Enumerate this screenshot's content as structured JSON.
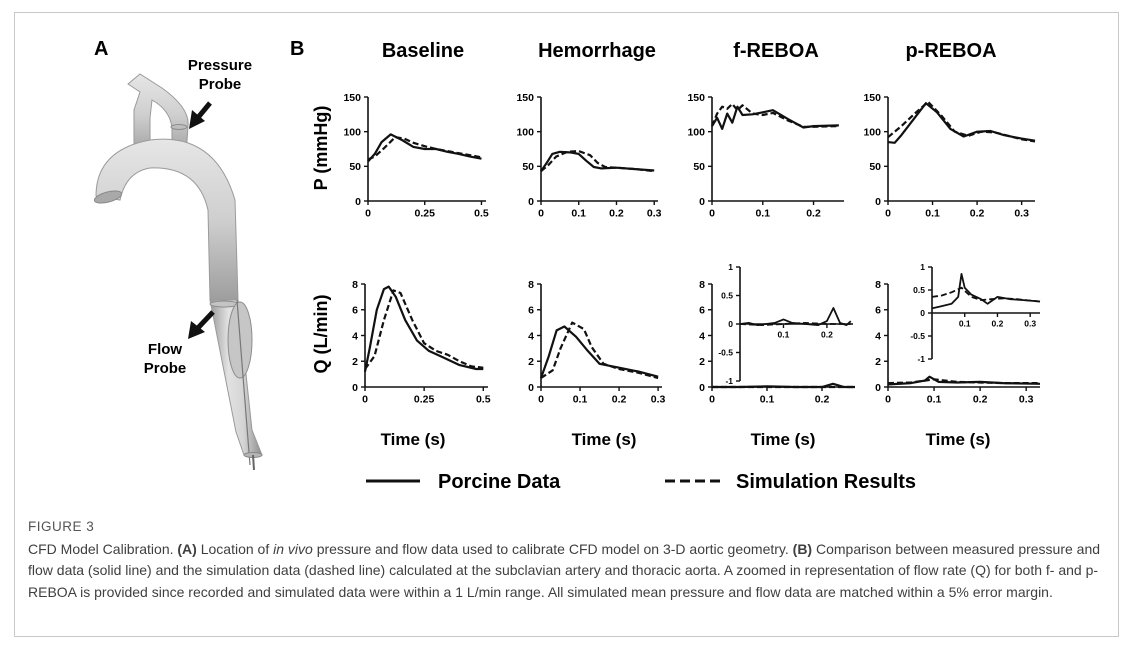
{
  "panel_a": {
    "label": "A",
    "pressure_probe_label": [
      "Pressure",
      "Probe"
    ],
    "flow_probe_label": [
      "Flow",
      "Probe"
    ]
  },
  "panel_b": {
    "label": "B",
    "column_titles": [
      "Baseline",
      "Hemorrhage",
      "f-REBOA",
      "p-REBOA"
    ],
    "row_labels": [
      "P (mmHg)",
      "Q (L/min)"
    ],
    "xlabel": "Time (s)",
    "legend": {
      "solid": "Porcine Data",
      "dashed": "Simulation Results"
    }
  },
  "caption": {
    "figure_label": "FIGURE 3",
    "title": "CFD Model Calibration.",
    "part_a_tag": "(A)",
    "part_a_text_1": "Location of",
    "part_a_italic": "in vivo",
    "part_a_text_2": "pressure and flow data used to calibrate CFD model on 3-D aortic geometry.",
    "part_b_tag": "(B)",
    "part_b_text": "Comparison between measured pressure and flow data (solid line) and the simulation data (dashed line) calculated at the subclavian artery and thoracic aorta. A zoomed in representation of flow rate (Q) for both f- and p-REBOA is provided since recorded and simulated data were within a 1 L/min range. All simulated mean pressure and flow data are matched within a 5% error margin."
  },
  "chart_data": [
    {
      "type": "line",
      "id": "p-baseline",
      "ylabel": "P (mmHg)",
      "xlabel": "Time (s)",
      "xlim": [
        0,
        0.52
      ],
      "ylim": [
        0,
        150
      ],
      "xticks": [
        0,
        0.25,
        0.5
      ],
      "xtick_labels": [
        "0",
        "0.25",
        "0.5"
      ],
      "yticks": [
        0,
        50,
        100,
        150
      ],
      "ytick_labels": [
        "0",
        "50",
        "100",
        "150"
      ],
      "series": [
        {
          "style": "solid",
          "x": [
            0,
            0.03,
            0.06,
            0.1,
            0.15,
            0.2,
            0.25,
            0.3,
            0.35,
            0.4,
            0.45,
            0.5
          ],
          "y": [
            57,
            68,
            85,
            96,
            88,
            78,
            75,
            75,
            71,
            68,
            64,
            61
          ]
        },
        {
          "style": "dashed",
          "x": [
            0,
            0.03,
            0.07,
            0.12,
            0.16,
            0.2,
            0.25,
            0.3,
            0.35,
            0.4,
            0.45,
            0.5
          ],
          "y": [
            60,
            64,
            76,
            92,
            90,
            84,
            79,
            75,
            72,
            69,
            66,
            63
          ]
        }
      ]
    },
    {
      "type": "line",
      "id": "p-hemorrhage",
      "ylabel": "P (mmHg)",
      "xlabel": "Time (s)",
      "xlim": [
        0,
        0.31
      ],
      "ylim": [
        0,
        150
      ],
      "xticks": [
        0,
        0.1,
        0.2,
        0.3
      ],
      "xtick_labels": [
        "0",
        "0.1",
        "0.2",
        "0.3"
      ],
      "yticks": [
        0,
        50,
        100,
        150
      ],
      "ytick_labels": [
        "0",
        "50",
        "100",
        "150"
      ],
      "series": [
        {
          "style": "solid",
          "x": [
            0,
            0.015,
            0.03,
            0.05,
            0.08,
            0.1,
            0.12,
            0.14,
            0.16,
            0.2,
            0.25,
            0.3
          ],
          "y": [
            43,
            55,
            68,
            71,
            70,
            68,
            58,
            49,
            47,
            48,
            46,
            44
          ]
        },
        {
          "style": "dashed",
          "x": [
            0,
            0.02,
            0.04,
            0.07,
            0.1,
            0.13,
            0.15,
            0.17,
            0.2,
            0.25,
            0.3
          ],
          "y": [
            43,
            52,
            64,
            71,
            72,
            66,
            55,
            49,
            48,
            46,
            43
          ]
        }
      ]
    },
    {
      "type": "line",
      "id": "p-freboa",
      "ylabel": "P (mmHg)",
      "xlabel": "Time (s)",
      "xlim": [
        0,
        0.26
      ],
      "ylim": [
        0,
        150
      ],
      "xticks": [
        0,
        0.1,
        0.2
      ],
      "xtick_labels": [
        "0",
        "0.1",
        "0.2"
      ],
      "yticks": [
        0,
        50,
        100,
        150
      ],
      "ytick_labels": [
        "0",
        "50",
        "100",
        "150"
      ],
      "series": [
        {
          "style": "solid",
          "x": [
            0,
            0.01,
            0.02,
            0.03,
            0.04,
            0.05,
            0.06,
            0.08,
            0.1,
            0.12,
            0.15,
            0.18,
            0.2,
            0.25
          ],
          "y": [
            108,
            120,
            104,
            126,
            113,
            136,
            124,
            125,
            128,
            131,
            118,
            106,
            108,
            109
          ]
        },
        {
          "style": "dashed",
          "x": [
            0,
            0.01,
            0.02,
            0.03,
            0.04,
            0.05,
            0.06,
            0.08,
            0.1,
            0.12,
            0.15,
            0.18,
            0.2,
            0.25
          ],
          "y": [
            108,
            126,
            136,
            133,
            140,
            131,
            138,
            126,
            124,
            127,
            116,
            107,
            107,
            108
          ]
        }
      ]
    },
    {
      "type": "line",
      "id": "p-preboa",
      "ylabel": "P (mmHg)",
      "xlabel": "Time (s)",
      "xlim": [
        0,
        0.33
      ],
      "ylim": [
        0,
        150
      ],
      "xticks": [
        0,
        0.1,
        0.2,
        0.3
      ],
      "xtick_labels": [
        "0",
        "0.1",
        "0.2",
        "0.3"
      ],
      "yticks": [
        0,
        50,
        100,
        150
      ],
      "ytick_labels": [
        "0",
        "50",
        "100",
        "150"
      ],
      "series": [
        {
          "style": "solid",
          "x": [
            0,
            0.015,
            0.03,
            0.06,
            0.085,
            0.11,
            0.14,
            0.17,
            0.2,
            0.23,
            0.26,
            0.3,
            0.33
          ],
          "y": [
            85,
            84,
            95,
            120,
            141,
            128,
            104,
            93,
            100,
            101,
            95,
            90,
            87
          ]
        },
        {
          "style": "dashed",
          "x": [
            0,
            0.015,
            0.03,
            0.06,
            0.09,
            0.12,
            0.15,
            0.18,
            0.21,
            0.24,
            0.27,
            0.3,
            0.33
          ],
          "y": [
            92,
            100,
            108,
            126,
            143,
            123,
            100,
            94,
            100,
            99,
            94,
            89,
            86
          ]
        }
      ]
    },
    {
      "type": "line",
      "id": "q-baseline",
      "ylabel": "Q (L/min)",
      "xlabel": "Time (s)",
      "xlim": [
        0,
        0.52
      ],
      "ylim": [
        0,
        8
      ],
      "xticks": [
        0,
        0.25,
        0.5
      ],
      "xtick_labels": [
        "0",
        "0.25",
        "0.5"
      ],
      "yticks": [
        0,
        2,
        4,
        6,
        8
      ],
      "ytick_labels": [
        "0",
        "2",
        "4",
        "6",
        "8"
      ],
      "series": [
        {
          "style": "solid",
          "x": [
            0,
            0.02,
            0.05,
            0.08,
            0.1,
            0.13,
            0.17,
            0.22,
            0.27,
            0.33,
            0.4,
            0.47,
            0.5
          ],
          "y": [
            1.2,
            3.0,
            6.0,
            7.6,
            7.8,
            7.0,
            5.2,
            3.6,
            2.8,
            2.3,
            1.7,
            1.4,
            1.4
          ]
        },
        {
          "style": "dashed",
          "x": [
            0,
            0.04,
            0.08,
            0.12,
            0.15,
            0.2,
            0.25,
            0.3,
            0.35,
            0.4,
            0.45,
            0.5
          ],
          "y": [
            1.4,
            2.4,
            5.2,
            7.5,
            7.3,
            5.2,
            3.4,
            2.8,
            2.5,
            2.0,
            1.6,
            1.5
          ]
        }
      ]
    },
    {
      "type": "line",
      "id": "q-hemorrhage",
      "ylabel": "Q (L/min)",
      "xlabel": "Time (s)",
      "xlim": [
        0,
        0.31
      ],
      "ylim": [
        0,
        8
      ],
      "xticks": [
        0,
        0.1,
        0.2,
        0.3
      ],
      "xtick_labels": [
        "0",
        "0.1",
        "0.2",
        "0.3"
      ],
      "yticks": [
        0,
        2,
        4,
        6,
        8
      ],
      "ytick_labels": [
        "0",
        "2",
        "4",
        "6",
        "8"
      ],
      "series": [
        {
          "style": "solid",
          "x": [
            0,
            0.02,
            0.04,
            0.06,
            0.09,
            0.12,
            0.15,
            0.2,
            0.25,
            0.3
          ],
          "y": [
            0.7,
            2.4,
            4.4,
            4.7,
            3.9,
            2.8,
            1.8,
            1.5,
            1.2,
            0.8
          ]
        },
        {
          "style": "dashed",
          "x": [
            0,
            0.03,
            0.05,
            0.08,
            0.11,
            0.13,
            0.16,
            0.2,
            0.25,
            0.3
          ],
          "y": [
            0.7,
            1.3,
            3.0,
            5.0,
            4.5,
            3.1,
            1.8,
            1.4,
            1.1,
            0.7
          ]
        }
      ]
    },
    {
      "type": "line",
      "id": "q-freboa",
      "ylabel": "Q (L/min)",
      "xlabel": "Time (s)",
      "xlim": [
        0,
        0.26
      ],
      "ylim": [
        0,
        8
      ],
      "xticks": [
        0,
        0.1,
        0.2
      ],
      "xtick_labels": [
        "0",
        "0.1",
        "0.2"
      ],
      "yticks": [
        0,
        2,
        4,
        6,
        8
      ],
      "ytick_labels": [
        "0",
        "2",
        "4",
        "6",
        "8"
      ],
      "series": [
        {
          "style": "solid",
          "x": [
            0,
            0.05,
            0.1,
            0.15,
            0.2,
            0.22,
            0.24,
            0.26
          ],
          "y": [
            0,
            0,
            0.05,
            0,
            0,
            0.25,
            0,
            0
          ]
        },
        {
          "style": "dashed",
          "x": [
            0,
            0.1,
            0.2,
            0.26
          ],
          "y": [
            0,
            0,
            0,
            0
          ]
        }
      ],
      "inset": {
        "xlim": [
          0,
          0.26
        ],
        "ylim": [
          -1,
          1
        ],
        "xticks": [
          0.1,
          0.2
        ],
        "xtick_labels": [
          "0.1",
          "0.2"
        ],
        "yticks": [
          -1,
          -0.5,
          0,
          0.5,
          1
        ],
        "ytick_labels": [
          "-1",
          "-0.5",
          "0",
          "0.5",
          "1"
        ],
        "series": [
          {
            "style": "solid",
            "x": [
              0,
              0.02,
              0.04,
              0.06,
              0.08,
              0.1,
              0.12,
              0.15,
              0.18,
              0.2,
              0.215,
              0.23,
              0.245,
              0.255
            ],
            "y": [
              0,
              0.02,
              -0.02,
              0,
              0.02,
              0.08,
              0.02,
              0,
              -0.02,
              0.05,
              0.28,
              0.02,
              -0.02,
              0.05
            ]
          },
          {
            "style": "dashed",
            "x": [
              0,
              0.05,
              0.1,
              0.15,
              0.2,
              0.255
            ],
            "y": [
              0,
              -0.02,
              0,
              0.02,
              0,
              0
            ]
          }
        ]
      }
    },
    {
      "type": "line",
      "id": "q-preboa",
      "ylabel": "Q (L/min)",
      "xlabel": "Time (s)",
      "xlim": [
        0,
        0.33
      ],
      "ylim": [
        0,
        8
      ],
      "xticks": [
        0,
        0.1,
        0.2,
        0.3
      ],
      "xtick_labels": [
        "0",
        "0.1",
        "0.2",
        "0.3"
      ],
      "yticks": [
        0,
        2,
        4,
        6,
        8
      ],
      "ytick_labels": [
        "0",
        "2",
        "4",
        "6",
        "8"
      ],
      "series": [
        {
          "style": "solid",
          "x": [
            0,
            0.05,
            0.08,
            0.09,
            0.11,
            0.15,
            0.2,
            0.25,
            0.33
          ],
          "y": [
            0.2,
            0.3,
            0.5,
            0.8,
            0.4,
            0.35,
            0.4,
            0.3,
            0.25
          ]
        },
        {
          "style": "dashed",
          "x": [
            0,
            0.05,
            0.08,
            0.1,
            0.15,
            0.2,
            0.25,
            0.33
          ],
          "y": [
            0.3,
            0.35,
            0.5,
            0.6,
            0.4,
            0.35,
            0.3,
            0.3
          ]
        }
      ],
      "inset": {
        "xlim": [
          0,
          0.33
        ],
        "ylim": [
          -1,
          1
        ],
        "xticks": [
          0.1,
          0.2,
          0.3
        ],
        "xtick_labels": [
          "0.1",
          "0.2",
          "0.3"
        ],
        "yticks": [
          -1,
          -0.5,
          0,
          0.5,
          1
        ],
        "ytick_labels": [
          "-1",
          "-0.5",
          "0",
          "0.5",
          "1"
        ],
        "series": [
          {
            "style": "solid",
            "x": [
              0,
              0.03,
              0.06,
              0.08,
              0.09,
              0.1,
              0.12,
              0.15,
              0.17,
              0.2,
              0.24,
              0.28,
              0.33
            ],
            "y": [
              0.1,
              0.15,
              0.2,
              0.35,
              0.85,
              0.55,
              0.4,
              0.3,
              0.2,
              0.35,
              0.3,
              0.28,
              0.25
            ]
          },
          {
            "style": "dashed",
            "x": [
              0,
              0.03,
              0.06,
              0.09,
              0.12,
              0.15,
              0.18,
              0.22,
              0.26,
              0.3,
              0.33
            ],
            "y": [
              0.35,
              0.38,
              0.45,
              0.55,
              0.35,
              0.28,
              0.3,
              0.32,
              0.3,
              0.27,
              0.25
            ]
          }
        ]
      }
    }
  ]
}
